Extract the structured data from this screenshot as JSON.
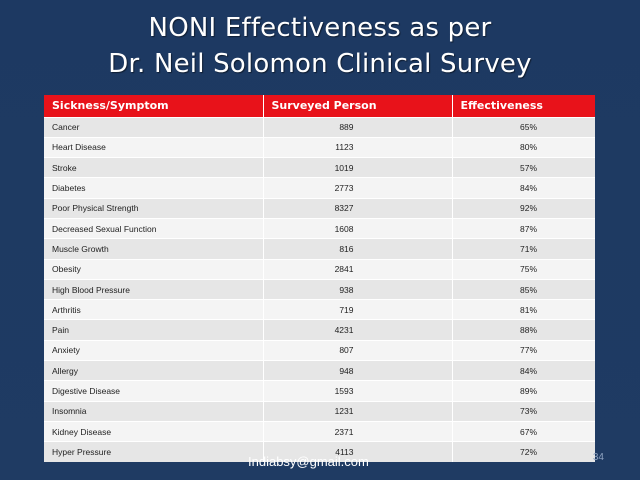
{
  "title": {
    "line1": "NONI Effectiveness as per",
    "line2": "Dr. Neil Solomon Clinical Survey"
  },
  "table": {
    "headers": [
      "Sickness/Symptom",
      "Surveyed Person",
      "Effectiveness"
    ],
    "rows": [
      [
        "Cancer",
        "889",
        "65%"
      ],
      [
        "Heart Disease",
        "1123",
        "80%"
      ],
      [
        "Stroke",
        "1019",
        "57%"
      ],
      [
        "Diabetes",
        "2773",
        "84%"
      ],
      [
        "Poor Physical Strength",
        "8327",
        "92%"
      ],
      [
        "Decreased Sexual Function",
        "1608",
        "87%"
      ],
      [
        "Muscle Growth",
        "816",
        "71%"
      ],
      [
        "Obesity",
        "2841",
        "75%"
      ],
      [
        "High Blood Pressure",
        "938",
        "85%"
      ],
      [
        "Arthritis",
        "719",
        "81%"
      ],
      [
        "Pain",
        "4231",
        "88%"
      ],
      [
        "Anxiety",
        "807",
        "77%"
      ],
      [
        "Allergy",
        "948",
        "84%"
      ],
      [
        "Digestive Disease",
        "1593",
        "89%"
      ],
      [
        "Insomnia",
        "1231",
        "73%"
      ],
      [
        "Kidney Disease",
        "2371",
        "67%"
      ],
      [
        "Hyper Pressure",
        "4113",
        "72%"
      ]
    ]
  },
  "footer": {
    "email": "Indiabsy@gmail.com",
    "page_number": "34"
  },
  "colors": {
    "background": "#1f3a5e",
    "header_red": "#e8121a"
  }
}
